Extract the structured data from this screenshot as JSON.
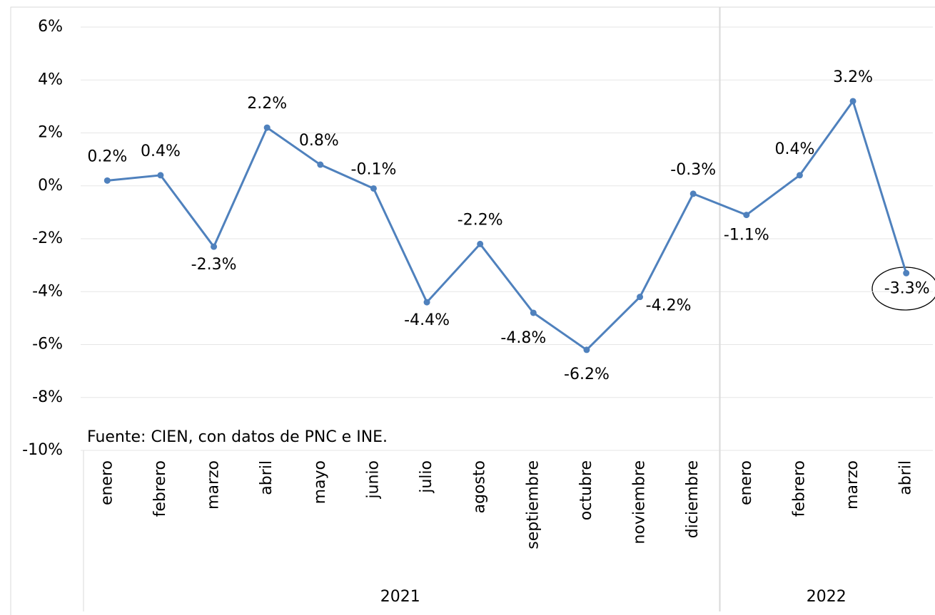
{
  "chart_data": {
    "type": "line",
    "category_groups": [
      {
        "name": "2021",
        "categories": [
          "enero",
          "febrero",
          "marzo",
          "abril",
          "mayo",
          "junio",
          "julio",
          "agosto",
          "septiembre",
          "octubre",
          "noviembre",
          "diciembre"
        ]
      },
      {
        "name": "2022",
        "categories": [
          "enero",
          "febrero",
          "marzo",
          "abril"
        ]
      }
    ],
    "series": [
      {
        "color": "#4f81bd",
        "values": [
          0.2,
          0.4,
          -2.3,
          2.2,
          0.8,
          -0.1,
          -4.4,
          -2.2,
          -4.8,
          -6.2,
          -4.2,
          -0.3,
          -1.1,
          0.4,
          3.2,
          -3.3
        ],
        "value_labels": [
          "0.2%",
          "0.4%",
          "-2.3%",
          "2.2%",
          "0.8%",
          "-0.1%",
          "-4.4%",
          "-2.2%",
          "-4.8%",
          "-6.2%",
          "-4.2%",
          "-0.3%",
          "-1.1%",
          "0.4%",
          "3.2%",
          "-3.3%"
        ]
      }
    ],
    "ylim": [
      -10,
      6
    ],
    "yticks": [
      {
        "value": -10,
        "label": "-10%"
      },
      {
        "value": -8,
        "label": "-8%"
      },
      {
        "value": -6,
        "label": "-6%"
      },
      {
        "value": -4,
        "label": "-4%"
      },
      {
        "value": -2,
        "label": "-2%"
      },
      {
        "value": 0,
        "label": "0%"
      },
      {
        "value": 2,
        "label": "2%"
      },
      {
        "value": 4,
        "label": "4%"
      },
      {
        "value": 6,
        "label": "6%"
      }
    ],
    "grid": true,
    "annotation": "Fuente: CIEN, con datos de PNC e INE."
  }
}
